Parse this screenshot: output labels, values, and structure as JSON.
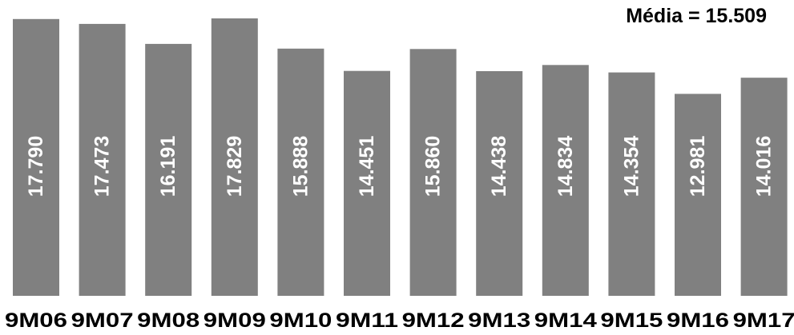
{
  "chart_data": {
    "type": "bar",
    "title": "",
    "annotation": "Média = 15.509",
    "categories": [
      "9M06",
      "9M07",
      "9M08",
      "9M09",
      "9M10",
      "9M11",
      "9M12",
      "9M13",
      "9M14",
      "9M15",
      "9M16",
      "9M17"
    ],
    "values": [
      17790,
      17473,
      16191,
      17829,
      15888,
      14451,
      15860,
      14438,
      14834,
      14354,
      12981,
      14016
    ],
    "value_labels": [
      "17.790",
      "17.473",
      "16.191",
      "17.829",
      "15.888",
      "14.451",
      "15.860",
      "14.438",
      "14.834",
      "14.354",
      "12.981",
      "14.016"
    ],
    "bar_color": "#808080",
    "label_color": "#ffffff",
    "axis_label_color": "#000000",
    "ylim": [
      0,
      17829
    ],
    "grid": false,
    "legend": "none"
  }
}
